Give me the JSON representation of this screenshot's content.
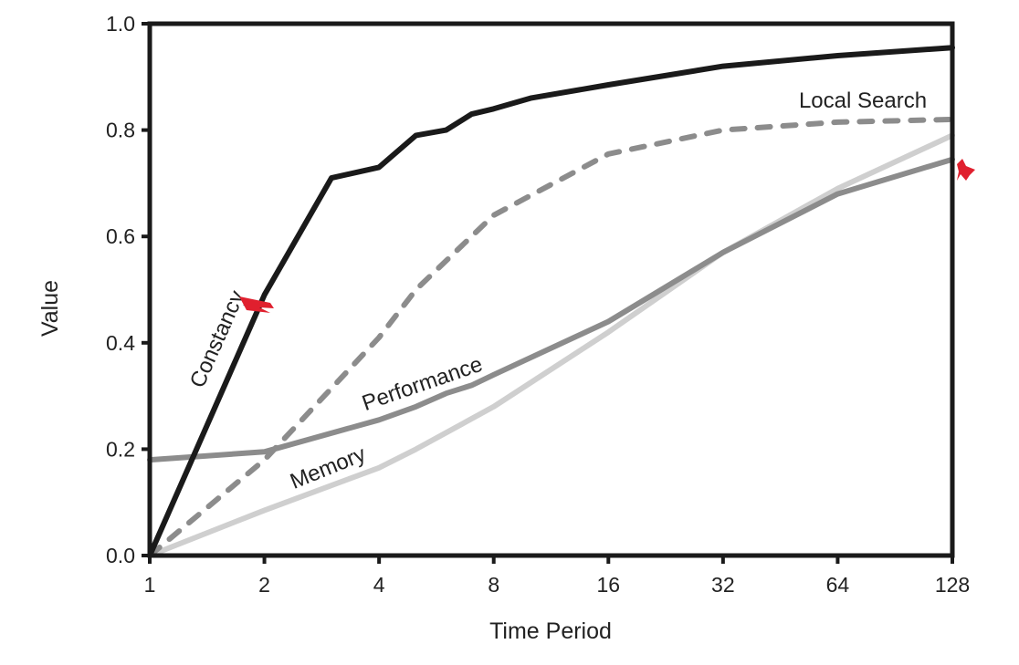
{
  "chart_data": {
    "type": "line",
    "title": "",
    "xlabel": "Time Period",
    "ylabel": "Value",
    "x_scale": "log2",
    "xlim": [
      1,
      128
    ],
    "ylim": [
      0,
      1.0
    ],
    "x_ticks": [
      "1",
      "2",
      "4",
      "8",
      "16",
      "32",
      "64",
      "128"
    ],
    "y_ticks": [
      "0.0",
      "0.2",
      "0.4",
      "0.6",
      "0.8",
      "1.0"
    ],
    "grid": false,
    "legend": "inline labels",
    "series": [
      {
        "name": "Constancy",
        "color": "#1a1a1a",
        "style": "solid",
        "x": [
          1,
          2,
          3,
          4,
          5,
          6,
          7,
          8,
          10,
          16,
          32,
          64,
          128
        ],
        "y": [
          0.0,
          0.49,
          0.71,
          0.73,
          0.79,
          0.8,
          0.83,
          0.84,
          0.86,
          0.885,
          0.92,
          0.94,
          0.955
        ]
      },
      {
        "name": "Local Search",
        "color": "#8c8c8c",
        "style": "dashed",
        "x": [
          1,
          2,
          4,
          5,
          8,
          16,
          32,
          64,
          128
        ],
        "y": [
          0.0,
          0.18,
          0.41,
          0.5,
          0.64,
          0.755,
          0.8,
          0.815,
          0.82
        ]
      },
      {
        "name": "Performance",
        "color": "#8c8c8c",
        "style": "solid",
        "x": [
          1,
          2,
          4,
          5,
          6,
          7,
          8,
          16,
          32,
          64,
          128
        ],
        "y": [
          0.18,
          0.195,
          0.255,
          0.28,
          0.305,
          0.32,
          0.34,
          0.44,
          0.57,
          0.68,
          0.745
        ]
      },
      {
        "name": "Memory",
        "color": "#cfcfcf",
        "style": "solid",
        "x": [
          1,
          2,
          4,
          5,
          8,
          16,
          32,
          64,
          128
        ],
        "y": [
          0.0,
          0.085,
          0.165,
          0.2,
          0.28,
          0.42,
          0.57,
          0.69,
          0.79
        ]
      }
    ],
    "annotation_color": "#e0202e"
  }
}
